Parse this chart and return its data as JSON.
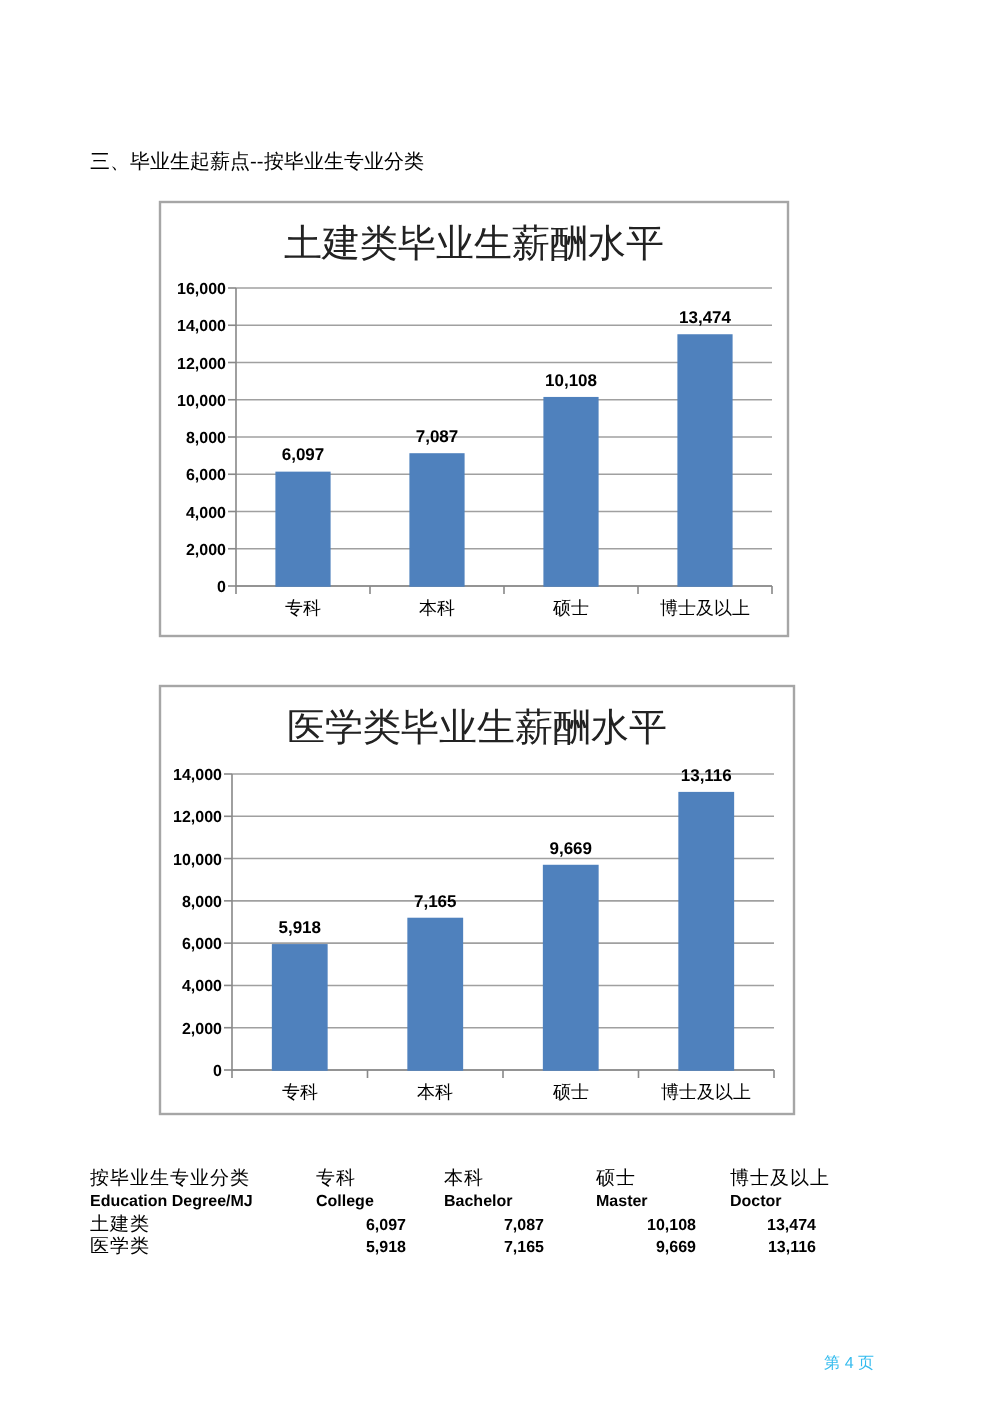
{
  "chart_data": [
    {
      "type": "bar",
      "title": "土建类毕业生薪酬水平",
      "annotations": [
        "三、毕业生起薪点--按毕业生专业分类"
      ],
      "categories": [
        "专科",
        "本科",
        "硕士",
        "博士及以上"
      ],
      "values": [
        6097,
        7087,
        10108,
        13474
      ],
      "color": "#4f81bd",
      "ylim": [
        0,
        16000
      ],
      "yticks": [
        {
          "value": 0,
          "label": "0"
        },
        {
          "value": 2000,
          "label": "2,000"
        },
        {
          "value": 4000,
          "label": "4,000"
        },
        {
          "value": 6000,
          "label": "6,000"
        },
        {
          "value": 8000,
          "label": "8,000"
        },
        {
          "value": 10000,
          "label": "10,000"
        },
        {
          "value": 12000,
          "label": "12,000"
        },
        {
          "value": 14000,
          "label": "14,000"
        },
        {
          "value": 16000,
          "label": "16,000"
        }
      ],
      "grid": "y",
      "value_labels": [
        "6,097",
        "7,087",
        "10,108",
        "13,474"
      ]
    },
    {
      "type": "bar",
      "title": "医学类毕业生薪酬水平",
      "categories": [
        "专科",
        "本科",
        "硕士",
        "博士及以上"
      ],
      "values": [
        5918,
        7165,
        9669,
        13116
      ],
      "color": "#4f81bd",
      "ylim": [
        0,
        14000
      ],
      "yticks": [
        {
          "value": 0,
          "label": "0"
        },
        {
          "value": 2000,
          "label": "2,000"
        },
        {
          "value": 4000,
          "label": "4,000"
        },
        {
          "value": 6000,
          "label": "6,000"
        },
        {
          "value": 8000,
          "label": "8,000"
        },
        {
          "value": 10000,
          "label": "10,000"
        },
        {
          "value": 12000,
          "label": "12,000"
        },
        {
          "value": 14000,
          "label": "14,000"
        }
      ],
      "grid": "y",
      "value_labels": [
        "5,918",
        "7,165",
        "9,669",
        "13,116"
      ]
    },
    {
      "type": "other",
      "annotations": [
        "按毕业生专业分类",
        "专科",
        "本科",
        "硕士",
        "博士及以上",
        "Education Degree/MJ",
        "College",
        "Bachelor",
        "Master",
        "Doctor",
        "土建类",
        "6,097",
        "7,087",
        "10,108",
        "13,474",
        "医学类",
        "5,918",
        "7,165",
        "9,669",
        "13,116",
        "第 4 页"
      ]
    }
  ]
}
